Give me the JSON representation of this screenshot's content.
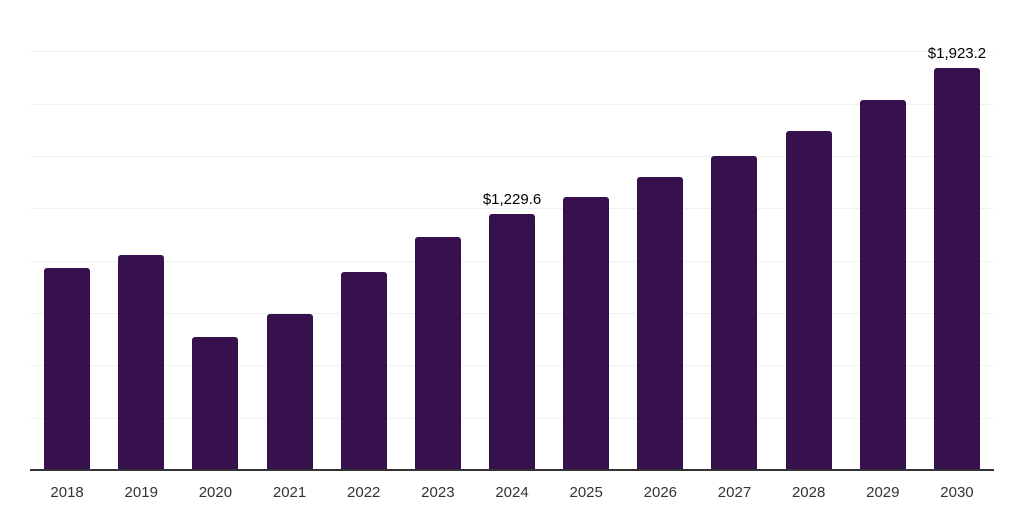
{
  "chart_data": {
    "type": "bar",
    "title": "",
    "xlabel": "",
    "ylabel": "",
    "categories": [
      "2018",
      "2019",
      "2020",
      "2021",
      "2022",
      "2023",
      "2024",
      "2025",
      "2026",
      "2027",
      "2028",
      "2029",
      "2030"
    ],
    "values": [
      971,
      1031,
      638,
      751,
      952,
      1119,
      1229.6,
      1309,
      1403,
      1507,
      1626,
      1770,
      1923.2
    ],
    "data_labels": {
      "2024": "$1,229.6",
      "2030": "$1,923.2"
    },
    "ylim": [
      0,
      2250
    ],
    "gridline_interval": 250,
    "grid": true,
    "legend": false,
    "y_axis_tick_labels_visible": false,
    "colors": {
      "bar": "#36114d",
      "gridline": "#f0f0f0",
      "axis_line": "#333333",
      "tick_label": "#333333",
      "data_label": "#000000",
      "background": "#ffffff"
    }
  }
}
